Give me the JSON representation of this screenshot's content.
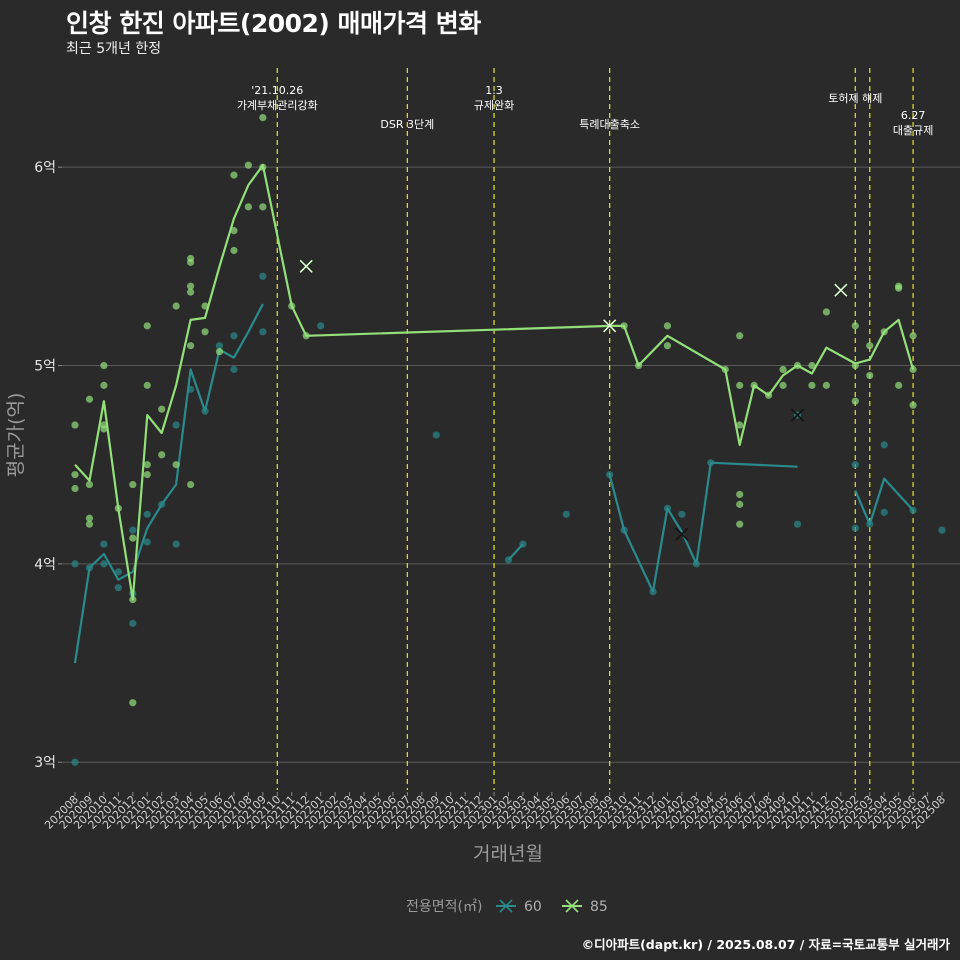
{
  "title": "인창 한진 아파트(2002) 매매가격 변화",
  "subtitle": "최근 5개년 한정",
  "caption": "©디아파트(dapt.kr) / 2025.08.07 / 자료=국토교통부 실거래가",
  "colors": {
    "background": "#2b2a2b",
    "grid": "#5a5a5a",
    "series_60": "#2a8a8c",
    "series_85": "#93e07a",
    "event_line": "#d8d82a"
  },
  "chart_data": {
    "type": "line",
    "title": "인창 한진 아파트(2002) 매매가격 변화",
    "xlabel": "거래년월",
    "ylabel": "평균가(억)",
    "ylim": [
      2.86,
      6.5
    ],
    "yticks": [
      {
        "value": 3,
        "label": "3억"
      },
      {
        "value": 4,
        "label": "4억"
      },
      {
        "value": 5,
        "label": "5억"
      },
      {
        "value": 6,
        "label": "6억"
      }
    ],
    "categories": [
      "202008",
      "202009",
      "202010",
      "202011",
      "202012",
      "202101",
      "202102",
      "202103",
      "202104",
      "202105",
      "202106",
      "202107",
      "202108",
      "202109",
      "202110",
      "202111",
      "202112",
      "202201",
      "202202",
      "202203",
      "202204",
      "202205",
      "202206",
      "202207",
      "202208",
      "202209",
      "202210",
      "202211",
      "202212",
      "202301",
      "202302",
      "202303",
      "202304",
      "202305",
      "202306",
      "202307",
      "202308",
      "202309",
      "202310",
      "202311",
      "202312",
      "202401",
      "202402",
      "202403",
      "202404",
      "202405",
      "202406",
      "202407",
      "202408",
      "202409",
      "202410",
      "202411",
      "202412",
      "202501",
      "202502",
      "202503",
      "202504",
      "202505",
      "202506",
      "202507",
      "202508"
    ],
    "legend_title": "전용면적(㎡)",
    "series": [
      {
        "name": "60",
        "color": "#2a8a8c",
        "line": [
          {
            "x": "202008",
            "y": 3.5
          },
          {
            "x": "202009",
            "y": 3.98
          },
          {
            "x": "202010",
            "y": 4.05
          },
          {
            "x": "202011",
            "y": 3.92
          },
          {
            "x": "202012",
            "y": 3.96
          },
          {
            "x": "202101",
            "y": 4.18
          },
          {
            "x": "202102",
            "y": 4.3
          },
          {
            "x": "202103",
            "y": 4.4
          },
          {
            "x": "202104",
            "y": 4.98
          },
          {
            "x": "202105",
            "y": 4.77
          },
          {
            "x": "202106",
            "y": 5.08
          },
          {
            "x": "202107",
            "y": 5.04
          },
          {
            "x": "202108",
            "y": 5.17
          },
          {
            "x": "202109",
            "y": 5.31
          },
          {
            "break": true
          },
          {
            "x": "202302",
            "y": 4.02
          },
          {
            "x": "202303",
            "y": 4.1
          },
          {
            "break": true
          },
          {
            "x": "202309",
            "y": 4.45
          },
          {
            "x": "202310",
            "y": 4.17
          },
          {
            "x": "202312",
            "y": 3.86
          },
          {
            "x": "202401",
            "y": 4.28
          },
          {
            "x": "202402",
            "y": 4.16
          },
          {
            "x": "202403",
            "y": 4.0
          },
          {
            "x": "202404",
            "y": 4.51
          },
          {
            "x": "202410",
            "y": 4.49
          },
          {
            "break": true
          },
          {
            "x": "202502",
            "y": 4.37
          },
          {
            "x": "202503",
            "y": 4.2
          },
          {
            "x": "202504",
            "y": 4.43
          },
          {
            "x": "202506",
            "y": 4.27
          }
        ],
        "points": [
          {
            "x": "202008",
            "y": 3.0
          },
          {
            "x": "202008",
            "y": 4.0
          },
          {
            "x": "202009",
            "y": 3.98
          },
          {
            "x": "202010",
            "y": 4.1
          },
          {
            "x": "202010",
            "y": 4.0
          },
          {
            "x": "202011",
            "y": 3.96
          },
          {
            "x": "202011",
            "y": 3.88
          },
          {
            "x": "202012",
            "y": 4.17
          },
          {
            "x": "202012",
            "y": 3.7
          },
          {
            "x": "202012",
            "y": 3.85
          },
          {
            "x": "202101",
            "y": 4.25
          },
          {
            "x": "202101",
            "y": 4.11
          },
          {
            "x": "202102",
            "y": 4.3
          },
          {
            "x": "202103",
            "y": 4.7
          },
          {
            "x": "202103",
            "y": 4.1
          },
          {
            "x": "202104",
            "y": 4.88
          },
          {
            "x": "202105",
            "y": 4.77
          },
          {
            "x": "202106",
            "y": 5.1
          },
          {
            "x": "202107",
            "y": 4.98
          },
          {
            "x": "202107",
            "y": 5.15
          },
          {
            "x": "202109",
            "y": 5.45
          },
          {
            "x": "202109",
            "y": 5.17
          },
          {
            "x": "202201",
            "y": 5.2
          },
          {
            "x": "202209",
            "y": 4.65
          },
          {
            "x": "202302",
            "y": 4.02
          },
          {
            "x": "202303",
            "y": 4.1
          },
          {
            "x": "202306",
            "y": 4.25
          },
          {
            "x": "202309",
            "y": 4.45
          },
          {
            "x": "202310",
            "y": 4.17
          },
          {
            "x": "202312",
            "y": 3.86
          },
          {
            "x": "202401",
            "y": 4.28
          },
          {
            "x": "202402",
            "y": 4.25
          },
          {
            "x": "202403",
            "y": 4.0
          },
          {
            "x": "202404",
            "y": 4.51
          },
          {
            "x": "202410",
            "y": 4.2
          },
          {
            "x": "202410",
            "y": 4.75
          },
          {
            "x": "202502",
            "y": 4.5
          },
          {
            "x": "202502",
            "y": 4.18
          },
          {
            "x": "202503",
            "y": 4.2
          },
          {
            "x": "202504",
            "y": 4.6
          },
          {
            "x": "202504",
            "y": 4.26
          },
          {
            "x": "202506",
            "y": 4.27
          },
          {
            "x": "202508",
            "y": 4.17
          }
        ],
        "markers": [
          {
            "x": "202402",
            "y": 4.15
          },
          {
            "x": "202410",
            "y": 4.75
          }
        ]
      },
      {
        "name": "85",
        "color": "#93e07a",
        "line": [
          {
            "x": "202008",
            "y": 4.5
          },
          {
            "x": "202009",
            "y": 4.42
          },
          {
            "x": "202010",
            "y": 4.82
          },
          {
            "x": "202011",
            "y": 4.28
          },
          {
            "x": "202012",
            "y": 3.82
          },
          {
            "x": "202101",
            "y": 4.75
          },
          {
            "x": "202102",
            "y": 4.66
          },
          {
            "x": "202103",
            "y": 4.9
          },
          {
            "x": "202104",
            "y": 5.23
          },
          {
            "x": "202105",
            "y": 5.24
          },
          {
            "x": "202106",
            "y": 5.5
          },
          {
            "x": "202107",
            "y": 5.74
          },
          {
            "x": "202108",
            "y": 5.91
          },
          {
            "x": "202109",
            "y": 6.01
          },
          {
            "x": "202111",
            "y": 5.3
          },
          {
            "x": "202112",
            "y": 5.15
          },
          {
            "x": "202309",
            "y": 5.2
          },
          {
            "x": "202310",
            "y": 5.2
          },
          {
            "x": "202311",
            "y": 5.0
          },
          {
            "x": "202401",
            "y": 5.15
          },
          {
            "x": "202405",
            "y": 4.98
          },
          {
            "x": "202406",
            "y": 4.6
          },
          {
            "x": "202407",
            "y": 4.9
          },
          {
            "x": "202408",
            "y": 4.85
          },
          {
            "x": "202409",
            "y": 4.95
          },
          {
            "x": "202410",
            "y": 5.0
          },
          {
            "x": "202411",
            "y": 4.96
          },
          {
            "x": "202412",
            "y": 5.09
          },
          {
            "x": "202502",
            "y": 5.01
          },
          {
            "x": "202503",
            "y": 5.03
          },
          {
            "x": "202504",
            "y": 5.17
          },
          {
            "x": "202505",
            "y": 5.23
          },
          {
            "x": "202506",
            "y": 4.98
          }
        ],
        "points": [
          {
            "x": "202008",
            "y": 4.7
          },
          {
            "x": "202008",
            "y": 4.45
          },
          {
            "x": "202008",
            "y": 4.38
          },
          {
            "x": "202009",
            "y": 4.83
          },
          {
            "x": "202009",
            "y": 4.23
          },
          {
            "x": "202009",
            "y": 4.2
          },
          {
            "x": "202009",
            "y": 4.4
          },
          {
            "x": "202010",
            "y": 5.0
          },
          {
            "x": "202010",
            "y": 4.9
          },
          {
            "x": "202010",
            "y": 4.7
          },
          {
            "x": "202010",
            "y": 4.68
          },
          {
            "x": "202011",
            "y": 4.28
          },
          {
            "x": "202012",
            "y": 4.4
          },
          {
            "x": "202012",
            "y": 4.13
          },
          {
            "x": "202012",
            "y": 3.3
          },
          {
            "x": "202012",
            "y": 3.82
          },
          {
            "x": "202101",
            "y": 5.2
          },
          {
            "x": "202101",
            "y": 4.9
          },
          {
            "x": "202101",
            "y": 4.5
          },
          {
            "x": "202101",
            "y": 4.45
          },
          {
            "x": "202102",
            "y": 4.78
          },
          {
            "x": "202102",
            "y": 4.55
          },
          {
            "x": "202103",
            "y": 5.3
          },
          {
            "x": "202103",
            "y": 4.5
          },
          {
            "x": "202104",
            "y": 5.54
          },
          {
            "x": "202104",
            "y": 5.52
          },
          {
            "x": "202104",
            "y": 5.4
          },
          {
            "x": "202104",
            "y": 5.37
          },
          {
            "x": "202104",
            "y": 5.1
          },
          {
            "x": "202104",
            "y": 4.4
          },
          {
            "x": "202105",
            "y": 5.3
          },
          {
            "x": "202105",
            "y": 5.17
          },
          {
            "x": "202106",
            "y": 5.07
          },
          {
            "x": "202107",
            "y": 5.96
          },
          {
            "x": "202107",
            "y": 5.68
          },
          {
            "x": "202107",
            "y": 5.58
          },
          {
            "x": "202108",
            "y": 6.01
          },
          {
            "x": "202108",
            "y": 5.8
          },
          {
            "x": "202109",
            "y": 6.25
          },
          {
            "x": "202109",
            "y": 6.0
          },
          {
            "x": "202109",
            "y": 5.8
          },
          {
            "x": "202111",
            "y": 5.3
          },
          {
            "x": "202112",
            "y": 5.15
          },
          {
            "x": "202310",
            "y": 5.2
          },
          {
            "x": "202311",
            "y": 5.0
          },
          {
            "x": "202401",
            "y": 5.2
          },
          {
            "x": "202401",
            "y": 5.1
          },
          {
            "x": "202405",
            "y": 4.98
          },
          {
            "x": "202406",
            "y": 5.15
          },
          {
            "x": "202406",
            "y": 4.9
          },
          {
            "x": "202406",
            "y": 4.7
          },
          {
            "x": "202406",
            "y": 4.35
          },
          {
            "x": "202406",
            "y": 4.3
          },
          {
            "x": "202406",
            "y": 4.2
          },
          {
            "x": "202407",
            "y": 4.9
          },
          {
            "x": "202408",
            "y": 4.85
          },
          {
            "x": "202409",
            "y": 4.98
          },
          {
            "x": "202409",
            "y": 4.9
          },
          {
            "x": "202410",
            "y": 5.0
          },
          {
            "x": "202411",
            "y": 5.0
          },
          {
            "x": "202411",
            "y": 4.9
          },
          {
            "x": "202412",
            "y": 5.27
          },
          {
            "x": "202412",
            "y": 4.9
          },
          {
            "x": "202502",
            "y": 5.2
          },
          {
            "x": "202502",
            "y": 5.0
          },
          {
            "x": "202502",
            "y": 4.82
          },
          {
            "x": "202503",
            "y": 5.1
          },
          {
            "x": "202503",
            "y": 4.95
          },
          {
            "x": "202504",
            "y": 5.17
          },
          {
            "x": "202505",
            "y": 5.4
          },
          {
            "x": "202505",
            "y": 5.39
          },
          {
            "x": "202505",
            "y": 4.9
          },
          {
            "x": "202506",
            "y": 5.15
          },
          {
            "x": "202506",
            "y": 4.98
          },
          {
            "x": "202506",
            "y": 4.8
          }
        ],
        "markers": [
          {
            "x": "202112",
            "y": 5.5
          },
          {
            "x": "202309",
            "y": 5.2
          },
          {
            "x": "202501",
            "y": 5.38
          }
        ]
      }
    ],
    "events": [
      {
        "x": "202110",
        "lines": [
          "'21.10.26",
          "가계부채관리강화"
        ]
      },
      {
        "x": "202207",
        "lines": [
          "DSR 3단계"
        ]
      },
      {
        "x": "202301",
        "lines": [
          "1.3",
          "규제완화"
        ]
      },
      {
        "x": "202309",
        "lines": [
          "특례대출축소"
        ]
      },
      {
        "x": "202502",
        "lines": [
          "토허제 해제"
        ]
      },
      {
        "x": "202503",
        "lines": []
      },
      {
        "x": "202506",
        "lines": [
          "6.27",
          "대출규제"
        ]
      }
    ]
  }
}
